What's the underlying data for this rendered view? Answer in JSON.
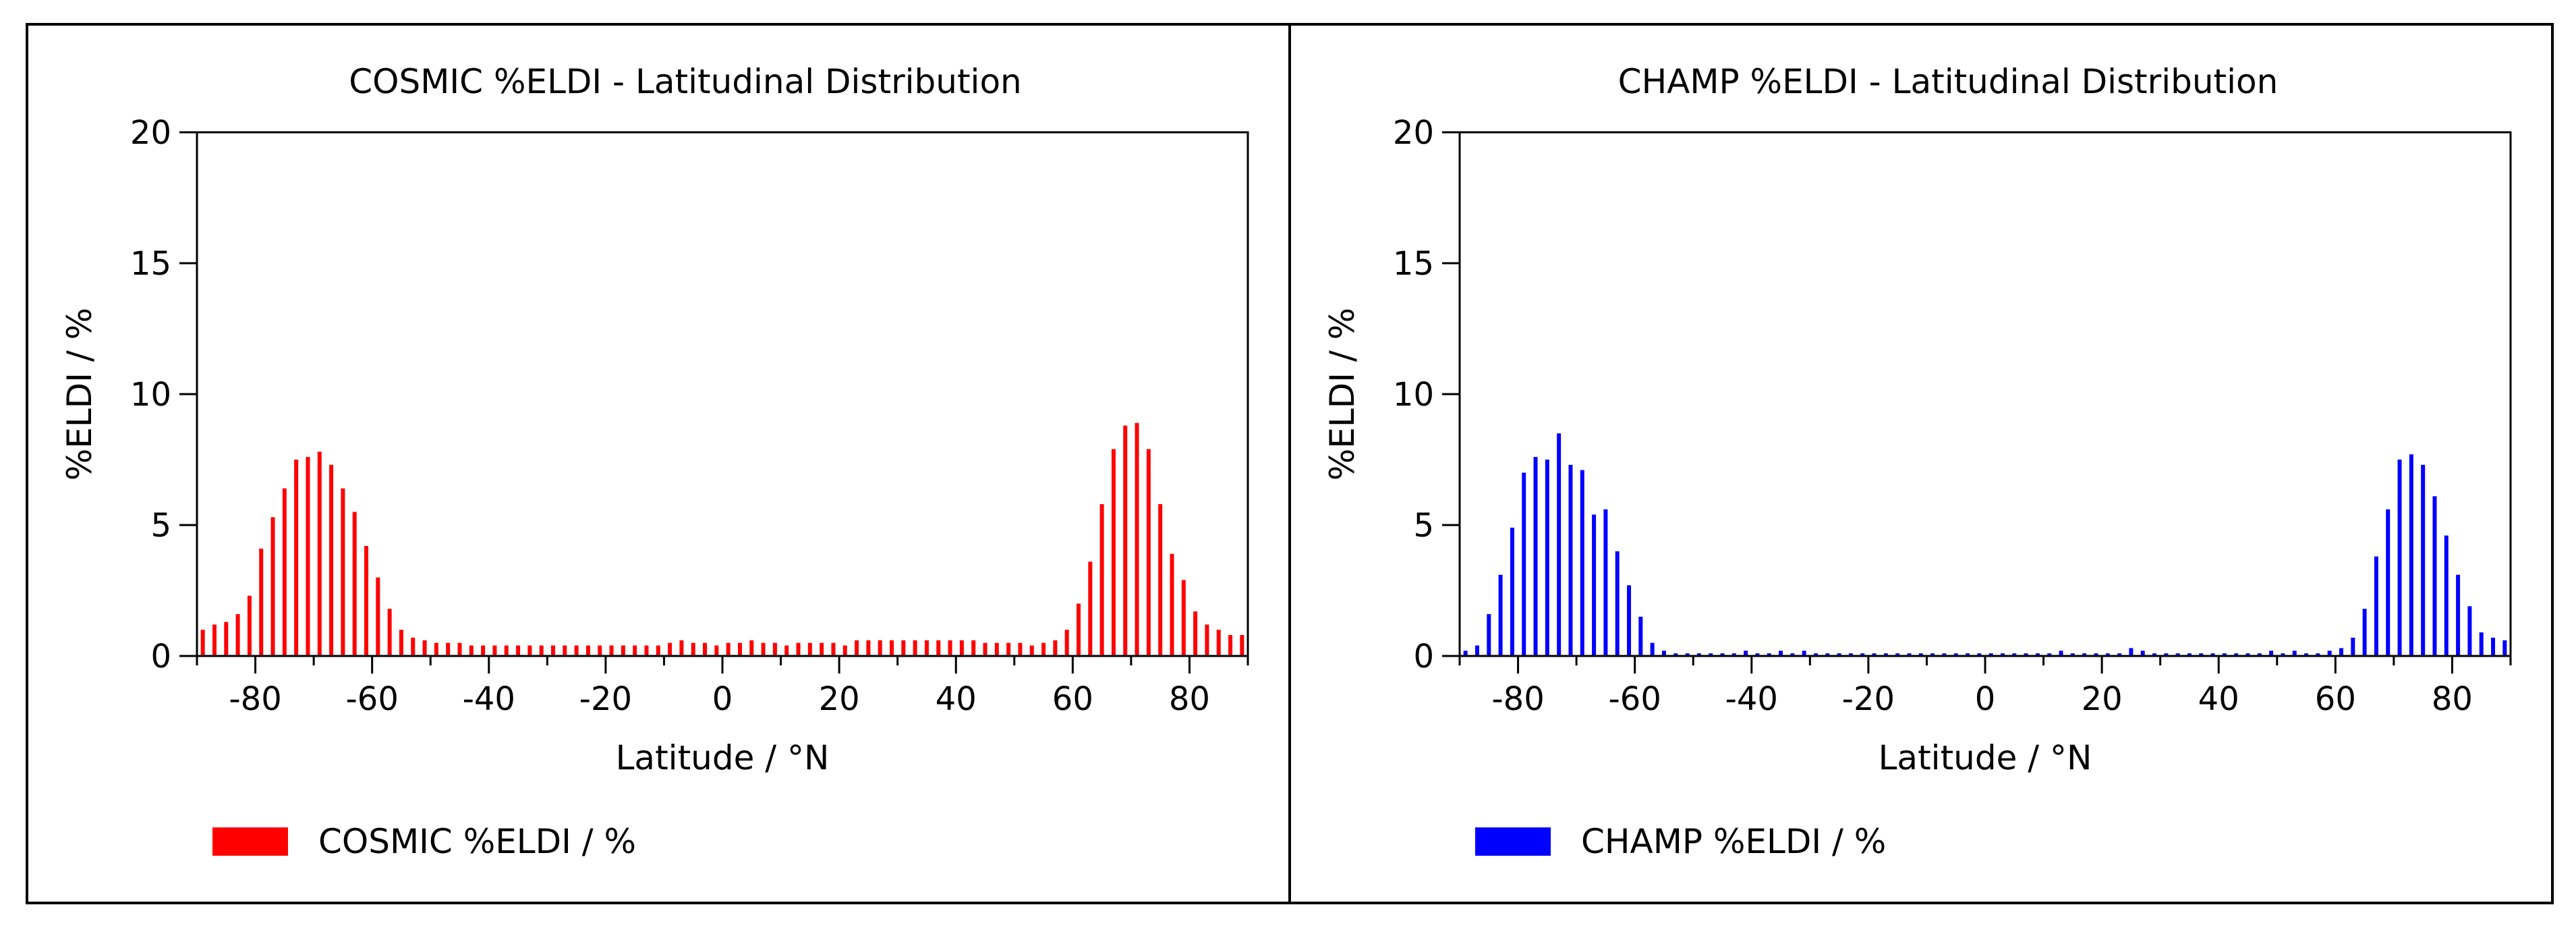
{
  "chart_data": [
    {
      "type": "bar",
      "title": "COSMIC %ELDI - Latitudinal Distribution",
      "xlabel": "Latitude / °N",
      "ylabel": "%ELDI / %",
      "xlim": [
        -90,
        90
      ],
      "ylim": [
        0,
        20
      ],
      "xticks": [
        -80,
        -60,
        -40,
        -20,
        0,
        20,
        40,
        60,
        80
      ],
      "xtick_labels": [
        "-80",
        "-60",
        "-40",
        "-20",
        "0",
        "20",
        "40",
        "60",
        "80"
      ],
      "yticks": [
        0,
        5,
        10,
        15,
        20
      ],
      "ytick_labels": [
        "0",
        "5",
        "10",
        "15",
        "20"
      ],
      "grid": false,
      "legend": "bottom-left",
      "series": [
        {
          "name": "COSMIC %ELDI / %",
          "color": "#ff0000",
          "x": [
            -89,
            -87,
            -85,
            -83,
            -81,
            -79,
            -77,
            -75,
            -73,
            -71,
            -69,
            -67,
            -65,
            -63,
            -61,
            -59,
            -57,
            -55,
            -53,
            -51,
            -49,
            -47,
            -45,
            -43,
            -41,
            -39,
            -37,
            -35,
            -33,
            -31,
            -29,
            -27,
            -25,
            -23,
            -21,
            -19,
            -17,
            -15,
            -13,
            -11,
            -9,
            -7,
            -5,
            -3,
            -1,
            1,
            3,
            5,
            7,
            9,
            11,
            13,
            15,
            17,
            19,
            21,
            23,
            25,
            27,
            29,
            31,
            33,
            35,
            37,
            39,
            41,
            43,
            45,
            47,
            49,
            51,
            53,
            55,
            57,
            59,
            61,
            63,
            65,
            67,
            69,
            71,
            73,
            75,
            77,
            79,
            81,
            83,
            85,
            87,
            89
          ],
          "values": [
            1.0,
            1.2,
            1.3,
            1.6,
            2.3,
            4.1,
            5.3,
            6.4,
            7.5,
            7.6,
            7.8,
            7.3,
            6.4,
            5.5,
            4.2,
            3.0,
            1.8,
            1.0,
            0.7,
            0.6,
            0.5,
            0.5,
            0.5,
            0.4,
            0.4,
            0.4,
            0.4,
            0.4,
            0.4,
            0.4,
            0.4,
            0.4,
            0.4,
            0.4,
            0.4,
            0.4,
            0.4,
            0.4,
            0.4,
            0.4,
            0.5,
            0.6,
            0.5,
            0.5,
            0.4,
            0.5,
            0.5,
            0.6,
            0.5,
            0.5,
            0.4,
            0.5,
            0.5,
            0.5,
            0.5,
            0.4,
            0.6,
            0.6,
            0.6,
            0.6,
            0.6,
            0.6,
            0.6,
            0.6,
            0.6,
            0.6,
            0.6,
            0.5,
            0.5,
            0.5,
            0.5,
            0.4,
            0.5,
            0.6,
            1.0,
            2.0,
            3.6,
            5.8,
            7.9,
            8.8,
            8.9,
            7.9,
            5.8,
            3.9,
            2.9,
            1.7,
            1.2,
            1.0,
            0.8,
            0.8
          ]
        }
      ]
    },
    {
      "type": "bar",
      "title": "CHAMP %ELDI - Latitudinal Distribution",
      "xlabel": "Latitude / °N",
      "ylabel": "%ELDI / %",
      "xlim": [
        -90,
        90
      ],
      "ylim": [
        0,
        20
      ],
      "xticks": [
        -80,
        -60,
        -40,
        -20,
        0,
        20,
        40,
        60,
        80
      ],
      "xtick_labels": [
        "-80",
        "-60",
        "-40",
        "-20",
        "0",
        "20",
        "40",
        "60",
        "80"
      ],
      "yticks": [
        0,
        5,
        10,
        15,
        20
      ],
      "ytick_labels": [
        "0",
        "5",
        "10",
        "15",
        "20"
      ],
      "grid": false,
      "legend": "bottom-left",
      "series": [
        {
          "name": "CHAMP %ELDI / %",
          "color": "#0000ff",
          "x": [
            -89,
            -87,
            -85,
            -83,
            -81,
            -79,
            -77,
            -75,
            -73,
            -71,
            -69,
            -67,
            -65,
            -63,
            -61,
            -59,
            -57,
            -55,
            -53,
            -51,
            -49,
            -47,
            -45,
            -43,
            -41,
            -39,
            -37,
            -35,
            -33,
            -31,
            -29,
            -27,
            -25,
            -23,
            -21,
            -19,
            -17,
            -15,
            -13,
            -11,
            -9,
            -7,
            -5,
            -3,
            -1,
            1,
            3,
            5,
            7,
            9,
            11,
            13,
            15,
            17,
            19,
            21,
            23,
            25,
            27,
            29,
            31,
            33,
            35,
            37,
            39,
            41,
            43,
            45,
            47,
            49,
            51,
            53,
            55,
            57,
            59,
            61,
            63,
            65,
            67,
            69,
            71,
            73,
            75,
            77,
            79,
            81,
            83,
            85,
            87,
            89
          ],
          "values": [
            0.2,
            0.4,
            1.6,
            3.1,
            4.9,
            7.0,
            7.6,
            7.5,
            8.5,
            7.3,
            7.1,
            5.4,
            5.6,
            4.0,
            2.7,
            1.5,
            0.5,
            0.2,
            0.1,
            0.1,
            0.1,
            0.1,
            0.1,
            0.1,
            0.2,
            0.1,
            0.1,
            0.2,
            0.1,
            0.2,
            0.1,
            0.1,
            0.1,
            0.1,
            0.1,
            0.1,
            0.1,
            0.1,
            0.1,
            0.1,
            0.1,
            0.1,
            0.1,
            0.1,
            0.1,
            0.1,
            0.1,
            0.1,
            0.1,
            0.1,
            0.1,
            0.2,
            0.1,
            0.1,
            0.1,
            0.1,
            0.1,
            0.3,
            0.2,
            0.1,
            0.1,
            0.1,
            0.1,
            0.1,
            0.1,
            0.1,
            0.1,
            0.1,
            0.1,
            0.2,
            0.1,
            0.2,
            0.1,
            0.1,
            0.2,
            0.3,
            0.7,
            1.8,
            3.8,
            5.6,
            7.5,
            7.7,
            7.3,
            6.1,
            4.6,
            3.1,
            1.9,
            0.9,
            0.7,
            0.6
          ]
        }
      ]
    }
  ]
}
